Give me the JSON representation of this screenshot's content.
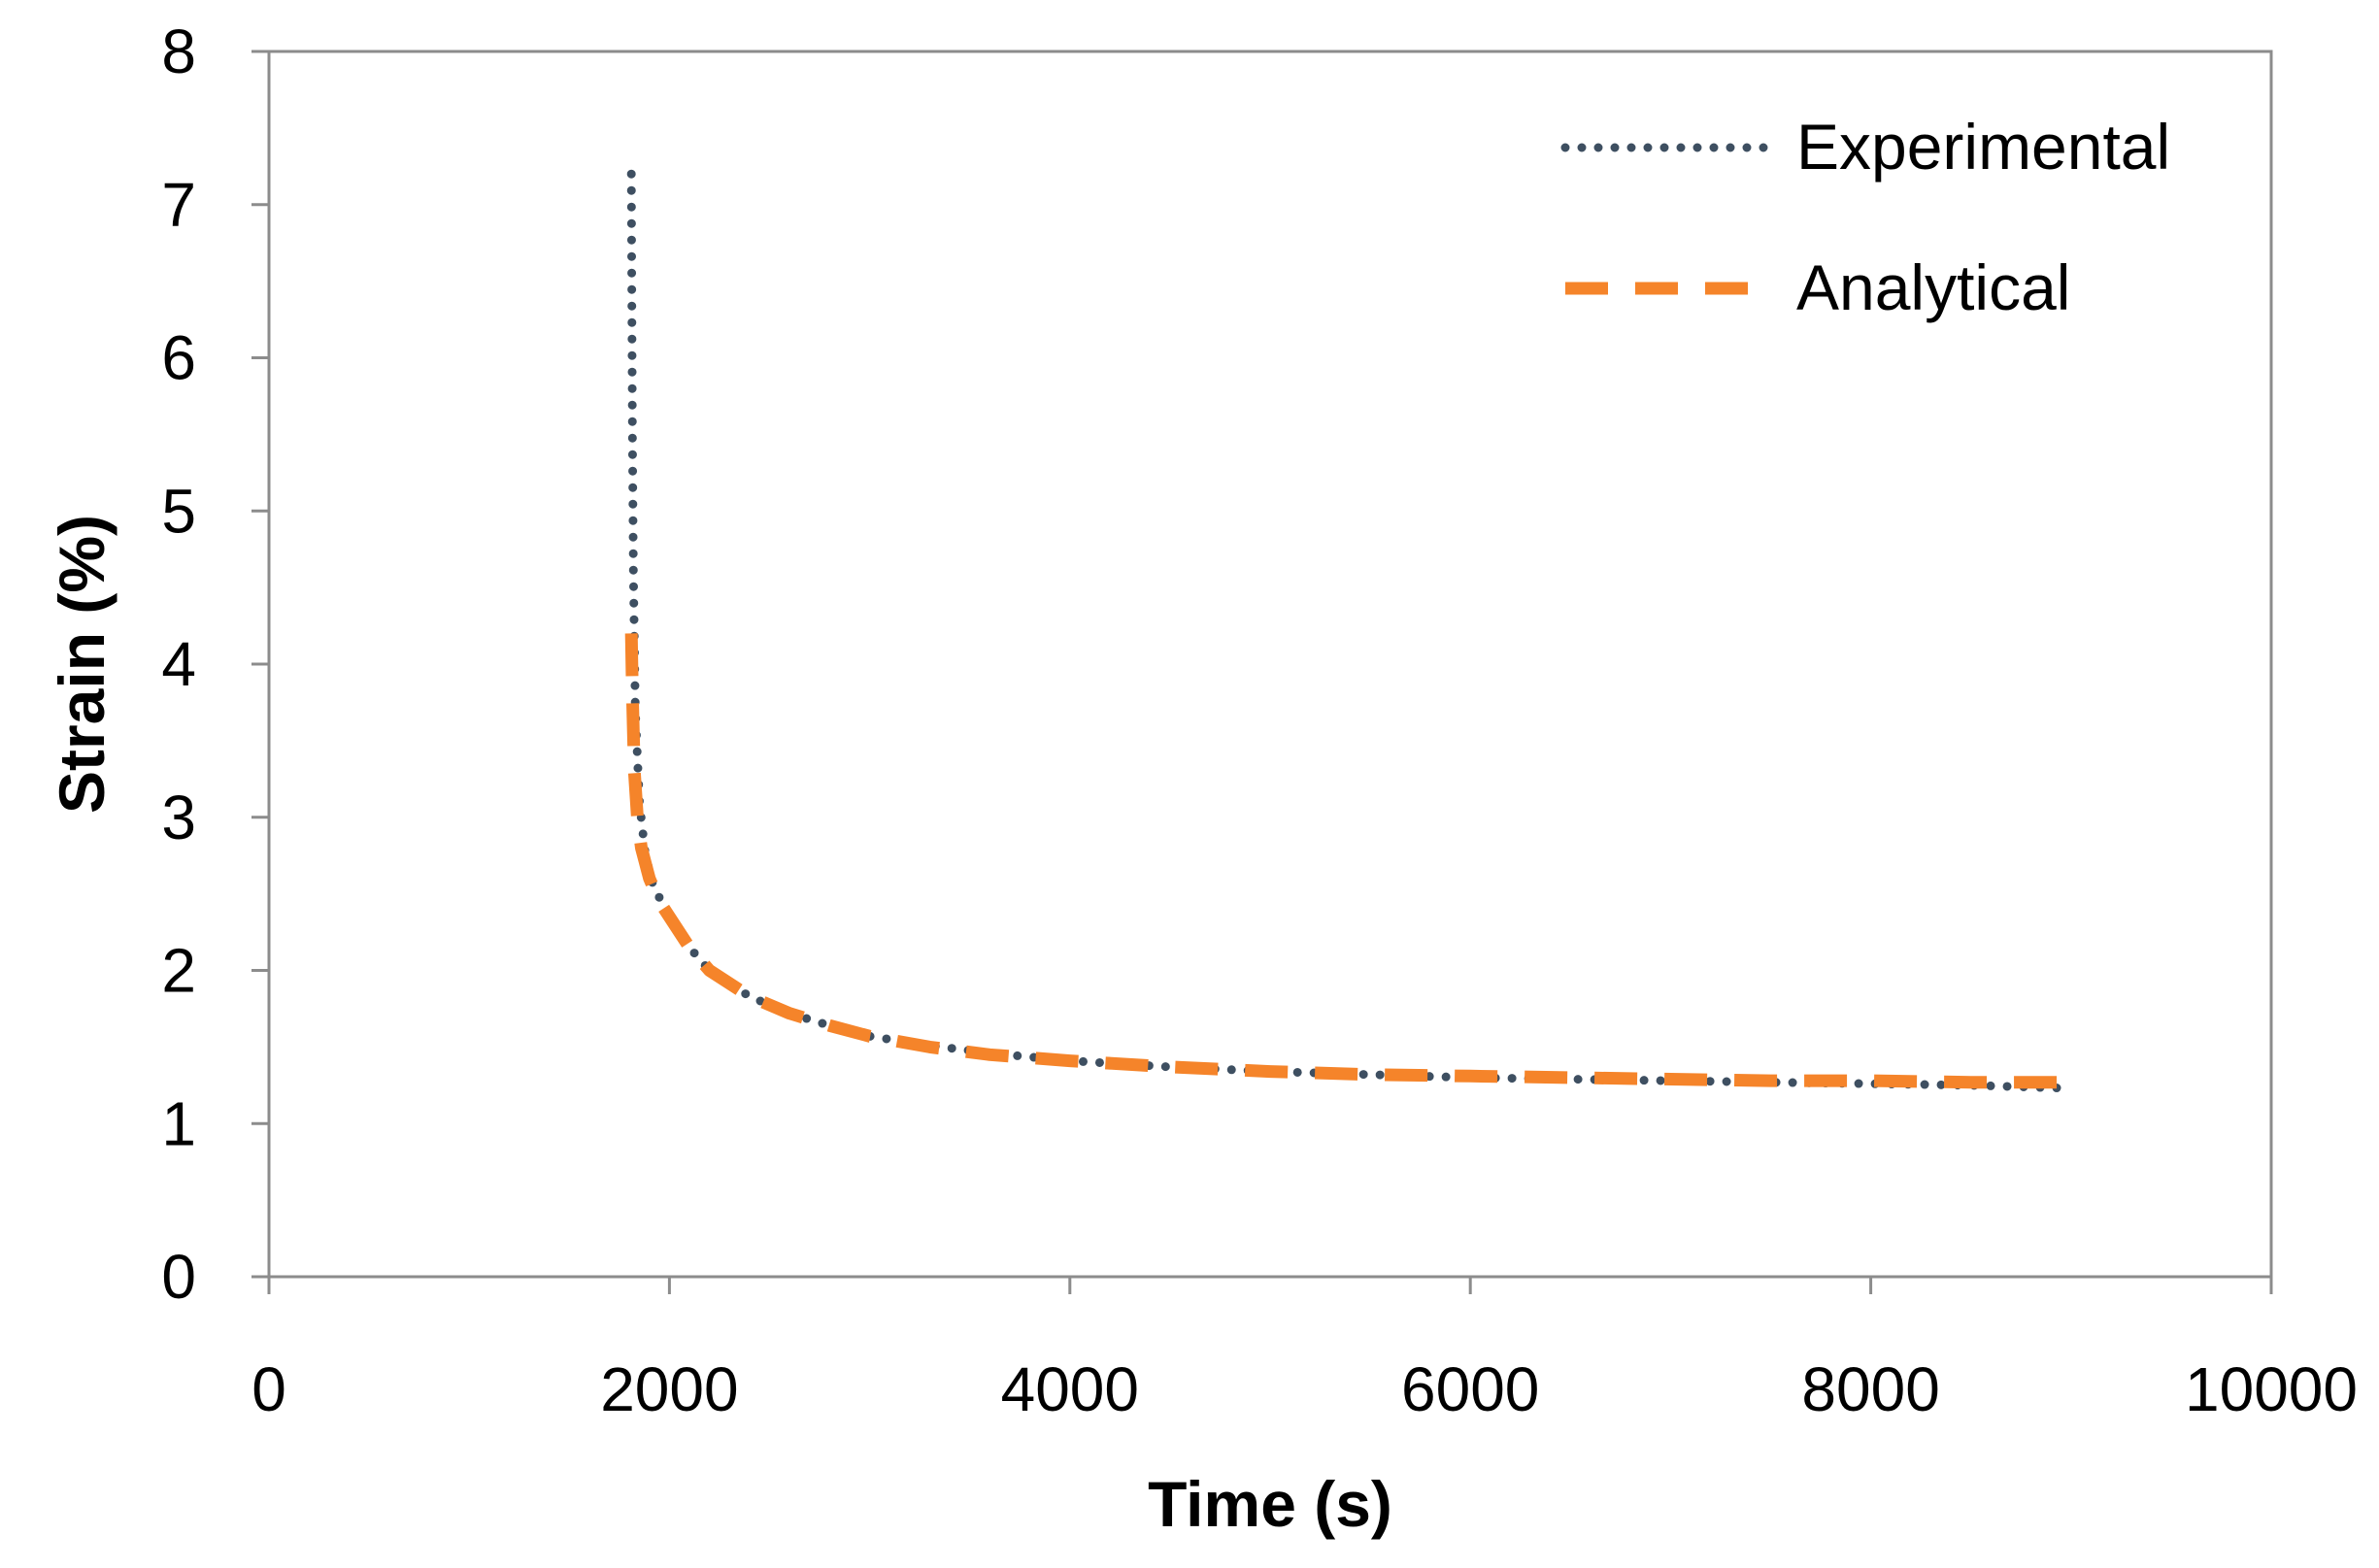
{
  "chart_data": {
    "type": "line",
    "title": "",
    "xlabel": "Time (s)",
    "ylabel": "Strain (%)",
    "xlim": [
      0,
      10000
    ],
    "ylim": [
      0,
      8
    ],
    "x_ticks": [
      0,
      2000,
      4000,
      6000,
      8000,
      10000
    ],
    "y_ticks": [
      0,
      1,
      2,
      3,
      4,
      5,
      6,
      7,
      8
    ],
    "x_tick_labels": [
      "0",
      "2000",
      "4000",
      "6000",
      "8000",
      "10000"
    ],
    "y_tick_labels": [
      "0",
      "1",
      "2",
      "3",
      "4",
      "5",
      "6",
      "7",
      "8"
    ],
    "grid": false,
    "legend_position": "top-right",
    "series": [
      {
        "name": "Experimental",
        "style": "dotted",
        "color": "#3e4f61",
        "x": [
          1810,
          1812,
          1815,
          1820,
          1830,
          1850,
          1880,
          1920,
          2000,
          2100,
          2200,
          2400,
          2600,
          2800,
          3000,
          3300,
          3600,
          4000,
          4500,
          5000,
          5500,
          6000,
          6500,
          7000,
          7500,
          8000,
          8500,
          9000
        ],
        "y": [
          7.2,
          6.5,
          5.5,
          4.6,
          3.7,
          3.1,
          2.75,
          2.55,
          2.35,
          2.15,
          2.0,
          1.83,
          1.72,
          1.64,
          1.57,
          1.51,
          1.46,
          1.41,
          1.37,
          1.34,
          1.32,
          1.3,
          1.29,
          1.28,
          1.27,
          1.26,
          1.25,
          1.23
        ]
      },
      {
        "name": "Analytical",
        "style": "dashed",
        "color": "#f5842a",
        "x": [
          1810,
          1815,
          1825,
          1840,
          1860,
          1900,
          1950,
          2000,
          2100,
          2200,
          2400,
          2600,
          2800,
          3000,
          3300,
          3600,
          4000,
          4500,
          5000,
          5500,
          6000,
          6500,
          7000,
          7500,
          8000,
          8500,
          9000
        ],
        "y": [
          4.2,
          3.8,
          3.3,
          3.0,
          2.8,
          2.6,
          2.45,
          2.35,
          2.15,
          2.0,
          1.83,
          1.72,
          1.64,
          1.57,
          1.5,
          1.45,
          1.41,
          1.37,
          1.34,
          1.32,
          1.31,
          1.3,
          1.29,
          1.28,
          1.28,
          1.27,
          1.27
        ]
      }
    ]
  }
}
